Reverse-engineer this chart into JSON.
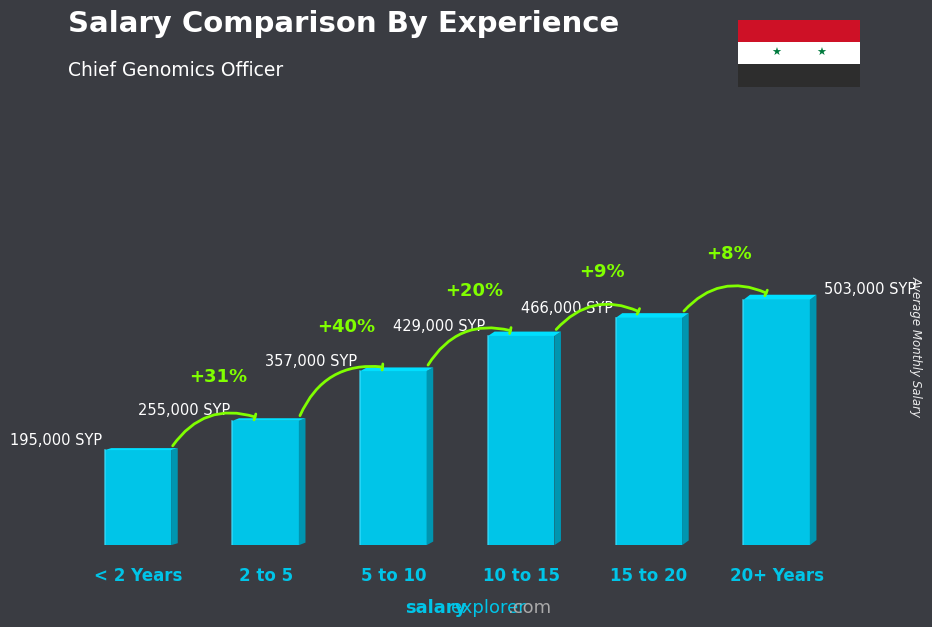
{
  "title": "Salary Comparison By Experience",
  "subtitle": "Chief Genomics Officer",
  "ylabel": "Average Monthly Salary",
  "categories": [
    "< 2 Years",
    "2 to 5",
    "5 to 10",
    "10 to 15",
    "15 to 20",
    "20+ Years"
  ],
  "values": [
    195000,
    255000,
    357000,
    429000,
    466000,
    503000
  ],
  "value_labels": [
    "195,000 SYP",
    "255,000 SYP",
    "357,000 SYP",
    "429,000 SYP",
    "466,000 SYP",
    "503,000 SYP"
  ],
  "pct_labels": [
    "+31%",
    "+40%",
    "+20%",
    "+9%",
    "+8%"
  ],
  "bar_color_main": "#00C5E8",
  "bar_color_right": "#0095B0",
  "bar_color_top": "#00DFFF",
  "bar_color_left": "#00AECE",
  "bg_color": "#3a3c42",
  "title_color": "#FFFFFF",
  "subtitle_color": "#FFFFFF",
  "value_label_color": "#FFFFFF",
  "pct_color": "#80FF00",
  "arrow_color": "#80FF00",
  "xtick_color": "#00C5E8",
  "footer_salary_color": "#00C5E8",
  "footer_rest_color": "#AAAAAA",
  "watermark_color": "#FFFFFF",
  "flag_red": "#CE1126",
  "flag_white": "#FFFFFF",
  "flag_black": "#2D2D2D",
  "flag_star": "#007A3D"
}
